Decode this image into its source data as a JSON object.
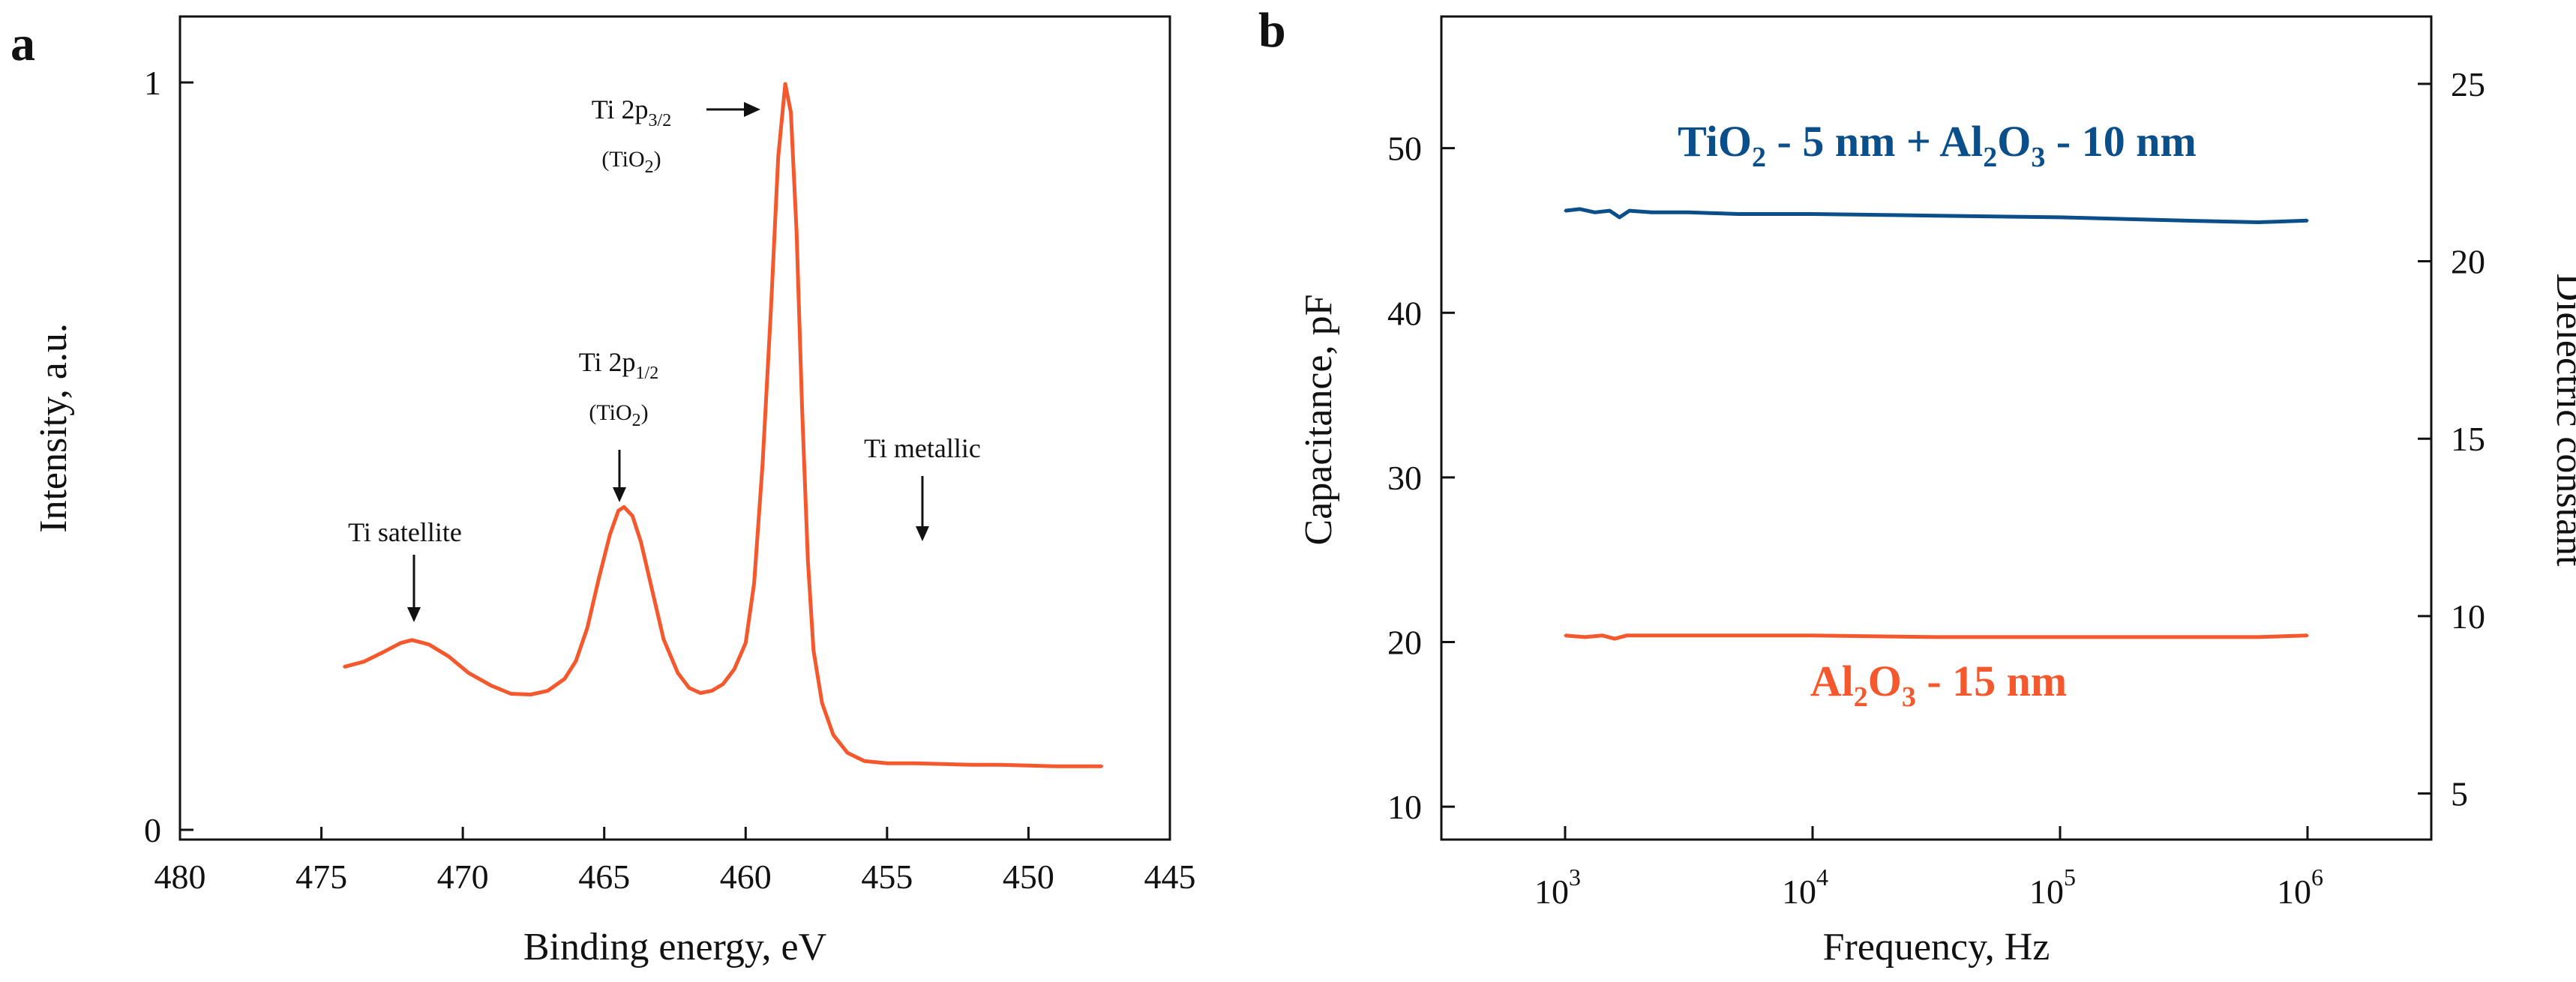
{
  "chart_data": [
    {
      "panel": "a",
      "type": "line",
      "title": "",
      "xlabel": "Binding energy, eV",
      "ylabel": "Intensity, a.u.",
      "xlim": [
        480,
        445
      ],
      "ylim": [
        0,
        1.0
      ],
      "x_ticks": [
        "480",
        "475",
        "470",
        "465",
        "460",
        "455",
        "450",
        "445"
      ],
      "x_tick_values": [
        480,
        475,
        470,
        465,
        460,
        455,
        450,
        445
      ],
      "y_ticks": [
        "0",
        "1"
      ],
      "y_tick_values": [
        0,
        1
      ],
      "series": [
        {
          "name": "Ti 2p spectrum",
          "color": "#f4582c",
          "points": [
            [
              474.2,
              0.218
            ],
            [
              473.5,
              0.225
            ],
            [
              472.8,
              0.238
            ],
            [
              472.2,
              0.25
            ],
            [
              471.8,
              0.254
            ],
            [
              471.2,
              0.248
            ],
            [
              470.5,
              0.232
            ],
            [
              469.8,
              0.21
            ],
            [
              469.0,
              0.193
            ],
            [
              468.3,
              0.182
            ],
            [
              467.6,
              0.181
            ],
            [
              467.0,
              0.186
            ],
            [
              466.4,
              0.202
            ],
            [
              466.0,
              0.226
            ],
            [
              465.6,
              0.27
            ],
            [
              465.2,
              0.335
            ],
            [
              464.8,
              0.395
            ],
            [
              464.5,
              0.427
            ],
            [
              464.3,
              0.432
            ],
            [
              464.0,
              0.42
            ],
            [
              463.7,
              0.385
            ],
            [
              463.3,
              0.32
            ],
            [
              462.9,
              0.255
            ],
            [
              462.4,
              0.21
            ],
            [
              462.0,
              0.19
            ],
            [
              461.6,
              0.183
            ],
            [
              461.2,
              0.186
            ],
            [
              460.8,
              0.195
            ],
            [
              460.4,
              0.215
            ],
            [
              460.0,
              0.25
            ],
            [
              459.7,
              0.33
            ],
            [
              459.4,
              0.49
            ],
            [
              459.1,
              0.7
            ],
            [
              458.85,
              0.9
            ],
            [
              458.6,
              0.998
            ],
            [
              458.4,
              0.96
            ],
            [
              458.2,
              0.8
            ],
            [
              458.0,
              0.56
            ],
            [
              457.8,
              0.36
            ],
            [
              457.6,
              0.24
            ],
            [
              457.3,
              0.17
            ],
            [
              456.9,
              0.127
            ],
            [
              456.4,
              0.103
            ],
            [
              455.8,
              0.092
            ],
            [
              455.0,
              0.089
            ],
            [
              454.0,
              0.089
            ],
            [
              453.0,
              0.088
            ],
            [
              452.0,
              0.087
            ],
            [
              451.0,
              0.087
            ],
            [
              450.0,
              0.086
            ],
            [
              449.0,
              0.085
            ],
            [
              448.2,
              0.085
            ],
            [
              447.4,
              0.085
            ]
          ]
        }
      ],
      "annotations": [
        {
          "text": "Ti satellite",
          "x": 471.8,
          "y": 0.254
        },
        {
          "text": "Ti 2p",
          "sub": "1/2",
          "line2": "(TiO",
          "line2_sub": "2",
          "line2_end": ")",
          "x": 464.3,
          "y": 0.432
        },
        {
          "text": "Ti 2p",
          "sub": "3/2",
          "line2": "(TiO",
          "line2_sub": "2",
          "line2_end": ")",
          "x": 458.6,
          "y": 0.998
        },
        {
          "text": "Ti metallic",
          "x": 453.7,
          "y": 0.17
        }
      ]
    },
    {
      "panel": "b",
      "type": "line",
      "title": "",
      "xlabel": "Frequency, Hz",
      "ylabel": "Capacitance, pF",
      "ylabel_right": "Dielectric constant",
      "xscale": "log",
      "xlim_exponent": [
        2.5,
        6.5
      ],
      "ylim": [
        8,
        58
      ],
      "ylim_right": [
        3.7,
        26.9
      ],
      "x_tick_base": "10",
      "x_tick_exponents": [
        "3",
        "4",
        "5",
        "6"
      ],
      "y_ticks": [
        "10",
        "20",
        "30",
        "40",
        "50"
      ],
      "y_tick_values": [
        10,
        20,
        30,
        40,
        50
      ],
      "y_ticks_right": [
        "5",
        "10",
        "15",
        "20",
        "25"
      ],
      "y_tick_values_right": [
        5,
        10,
        15,
        20,
        25
      ],
      "series": [
        {
          "name": "TiO2 - 5 nm + Al2O3 - 10 nm",
          "color": "#0b4f8a",
          "label": {
            "a": "TiO",
            "a_sub": "2",
            "b": " - 5 nm + Al",
            "b_sub": "2",
            "c": "O",
            "c_sub": "3",
            "d": " - 10 nm"
          },
          "points": [
            [
              3.0,
              46.2
            ],
            [
              3.06,
              46.3
            ],
            [
              3.12,
              46.1
            ],
            [
              3.18,
              46.2
            ],
            [
              3.22,
              45.8
            ],
            [
              3.26,
              46.2
            ],
            [
              3.35,
              46.1
            ],
            [
              3.5,
              46.1
            ],
            [
              3.7,
              46.0
            ],
            [
              4.0,
              46.0
            ],
            [
              4.5,
              45.9
            ],
            [
              5.0,
              45.8
            ],
            [
              5.5,
              45.6
            ],
            [
              5.8,
              45.5
            ],
            [
              6.0,
              45.6
            ]
          ]
        },
        {
          "name": "Al2O3 - 15 nm",
          "color": "#f4582c",
          "label": {
            "a": "Al",
            "a_sub": "2",
            "b": "O",
            "b_sub": "3",
            "c": " - 15 nm"
          },
          "points": [
            [
              3.0,
              20.4
            ],
            [
              3.08,
              20.3
            ],
            [
              3.15,
              20.4
            ],
            [
              3.2,
              20.2
            ],
            [
              3.25,
              20.4
            ],
            [
              3.4,
              20.4
            ],
            [
              3.7,
              20.4
            ],
            [
              4.0,
              20.4
            ],
            [
              4.5,
              20.3
            ],
            [
              5.0,
              20.3
            ],
            [
              5.5,
              20.3
            ],
            [
              5.8,
              20.3
            ],
            [
              6.0,
              20.4
            ]
          ]
        }
      ]
    }
  ]
}
